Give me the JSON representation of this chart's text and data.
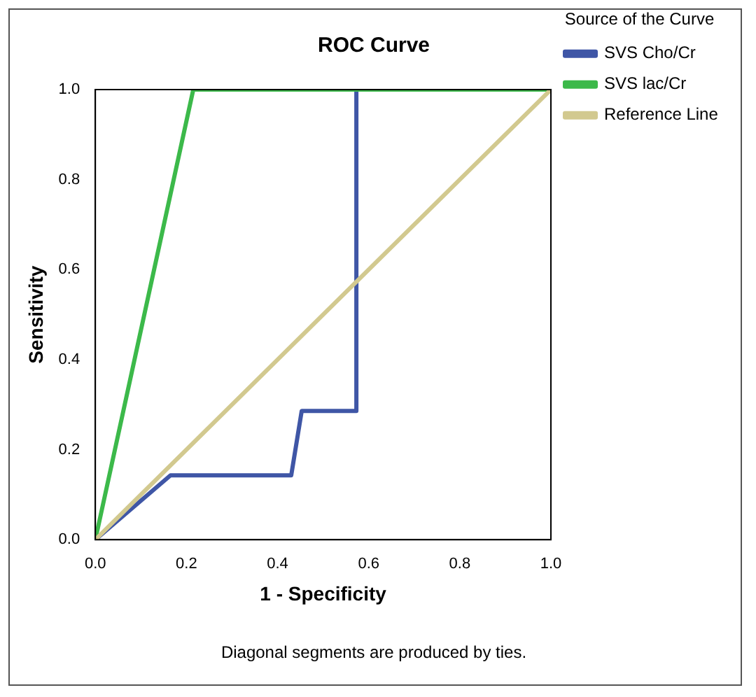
{
  "chart_data": {
    "type": "line",
    "title": "ROC Curve",
    "xlabel": "1 - Specificity",
    "ylabel": "Sensitivity",
    "legend_title": "Source of the Curve",
    "legend": "right",
    "xlim": [
      0,
      1
    ],
    "ylim": [
      0,
      1
    ],
    "xticks": [
      {
        "value": 0,
        "label": "0.0"
      },
      {
        "value": 0.2,
        "label": "0.2"
      },
      {
        "value": 0.4,
        "label": "0.4"
      },
      {
        "value": 0.6,
        "label": "0.6"
      },
      {
        "value": 0.8,
        "label": "0.8"
      },
      {
        "value": 1,
        "label": "1.0"
      }
    ],
    "yticks": [
      {
        "value": 0,
        "label": "0.0"
      },
      {
        "value": 0.2,
        "label": "0.2"
      },
      {
        "value": 0.4,
        "label": "0.4"
      },
      {
        "value": 0.6,
        "label": "0.6"
      },
      {
        "value": 0.8,
        "label": "0.8"
      },
      {
        "value": 1,
        "label": "1.0"
      }
    ],
    "grid": false,
    "marker": "none",
    "line_style": "solid",
    "series": [
      {
        "name": "SVS Cho/Cr",
        "color": "#3f56a6",
        "x": [
          0,
          0.165,
          0.43,
          0.453,
          0.573,
          0.573
        ],
        "values": [
          0,
          0.143,
          0.143,
          0.286,
          0.286,
          1
        ]
      },
      {
        "name": "SVS lac/Cr",
        "color": "#3cb94a",
        "x": [
          0,
          0.215,
          1
        ],
        "values": [
          0,
          1,
          1
        ]
      },
      {
        "name": "Reference Line",
        "color": "#d2c98f",
        "x": [
          0,
          1
        ],
        "values": [
          0,
          1
        ]
      }
    ],
    "annotations": [
      "Diagonal segments are produced by ties."
    ]
  }
}
